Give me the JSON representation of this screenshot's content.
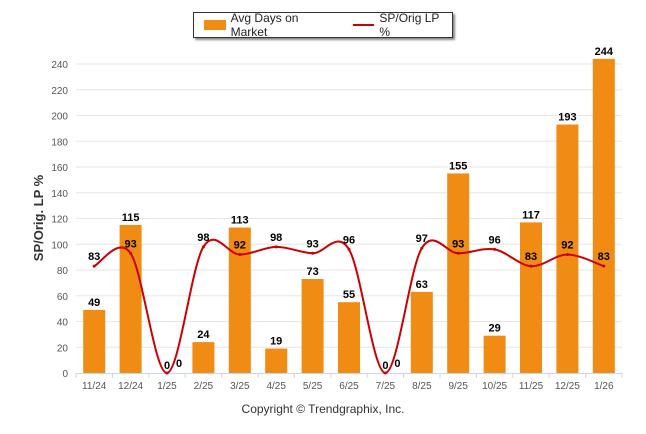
{
  "chart_data": {
    "type": "bar",
    "title": "",
    "xlabel": "",
    "ylabel": "SP/Orig. LP %",
    "ylim": [
      0,
      250
    ],
    "yticks": [
      0,
      20,
      40,
      60,
      80,
      100,
      120,
      140,
      160,
      180,
      200,
      220,
      240
    ],
    "grid": true,
    "legend_position": "top-center",
    "categories": [
      "11/24",
      "12/24",
      "1/25",
      "2/25",
      "3/25",
      "4/25",
      "5/25",
      "6/25",
      "7/25",
      "8/25",
      "9/25",
      "10/25",
      "11/25",
      "12/25",
      "1/26"
    ],
    "series": [
      {
        "name": "Avg Days on Market",
        "type": "bar",
        "color": "#F08C14",
        "values": [
          49,
          115,
          0,
          24,
          113,
          19,
          73,
          55,
          0,
          63,
          155,
          29,
          117,
          193,
          244
        ]
      },
      {
        "name": "SP/Orig LP %",
        "type": "line",
        "color": "#CC0000",
        "values": [
          83,
          93,
          0,
          98,
          92,
          98,
          93,
          96,
          0,
          97,
          93,
          96,
          83,
          92,
          83
        ]
      }
    ]
  },
  "legend": {
    "bar_label": "Avg Days on Market",
    "line_label": "SP/Orig LP %"
  },
  "footer": {
    "copyright": "Copyright © Trendgraphix, Inc."
  }
}
